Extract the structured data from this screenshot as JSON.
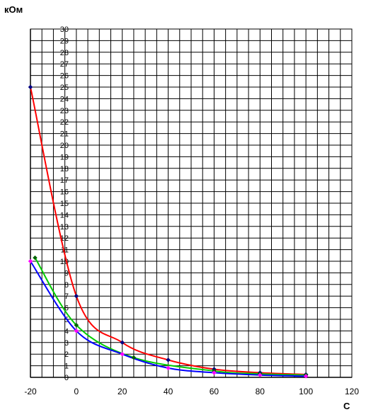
{
  "chart_data": {
    "type": "line",
    "title": "",
    "ylabel": "кОм",
    "xlabel": "C",
    "xlim": [
      -20,
      120
    ],
    "ylim": [
      0,
      30
    ],
    "x_ticks": [
      -20,
      0,
      20,
      40,
      60,
      80,
      100,
      120
    ],
    "y_ticks": [
      0,
      1,
      2,
      3,
      4,
      5,
      6,
      7,
      8,
      9,
      10,
      11,
      12,
      13,
      14,
      15,
      16,
      17,
      18,
      19,
      20,
      21,
      22,
      23,
      24,
      25,
      26,
      27,
      28,
      29,
      30
    ],
    "x_gridlines_step": 5,
    "y_gridlines_step": 1,
    "grid": true,
    "series": [
      {
        "color": "#ff0000",
        "marker_color": "#000080",
        "x": [
          -20,
          0,
          20,
          40,
          60,
          80,
          100
        ],
        "y": [
          25,
          7,
          3,
          1.5,
          0.7,
          0.4,
          0.25
        ]
      },
      {
        "color": "#00cc00",
        "marker_color": "#006400",
        "x": [
          -18,
          0,
          25,
          60,
          80,
          100
        ],
        "y": [
          10.3,
          4.5,
          1.7,
          0.55,
          0.3,
          0.2
        ]
      },
      {
        "color": "#0000ff",
        "marker_color": "#ff00ff",
        "x": [
          -20,
          0,
          20,
          40,
          60,
          80,
          100
        ],
        "y": [
          10,
          4,
          2,
          0.8,
          0.4,
          0.2,
          0.1
        ]
      }
    ]
  }
}
